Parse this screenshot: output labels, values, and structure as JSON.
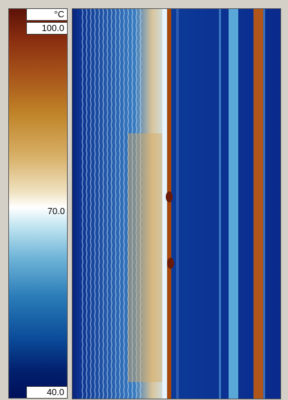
{
  "colorbar": {
    "unit": "°C",
    "labels": [
      "100.0",
      "70.0",
      "40.0"
    ]
  }
}
